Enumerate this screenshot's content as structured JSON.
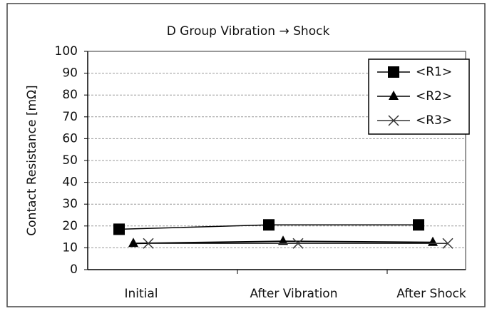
{
  "chart_data": {
    "type": "line",
    "title": "D Group  Vibration → Shock",
    "y_label": "Contact Resistance [mΩ]",
    "categories": [
      "Initial",
      "After Vibration",
      "After Shock"
    ],
    "series": [
      {
        "name": "<R1>",
        "color": "#000000",
        "marker": "square",
        "values": [
          18.5,
          20.5,
          20.5
        ]
      },
      {
        "name": "<R2>",
        "color": "#000000",
        "marker": "triangle",
        "values": [
          12,
          13,
          12.5
        ]
      },
      {
        "name": "<R3>",
        "color": "#333333",
        "marker": "x",
        "values": [
          12,
          12,
          12
        ]
      }
    ],
    "ylim": [
      0,
      100
    ],
    "yticks": [
      0,
      10,
      20,
      30,
      40,
      50,
      60,
      70,
      80,
      90,
      100
    ],
    "grid": true,
    "legend": "upper right"
  }
}
